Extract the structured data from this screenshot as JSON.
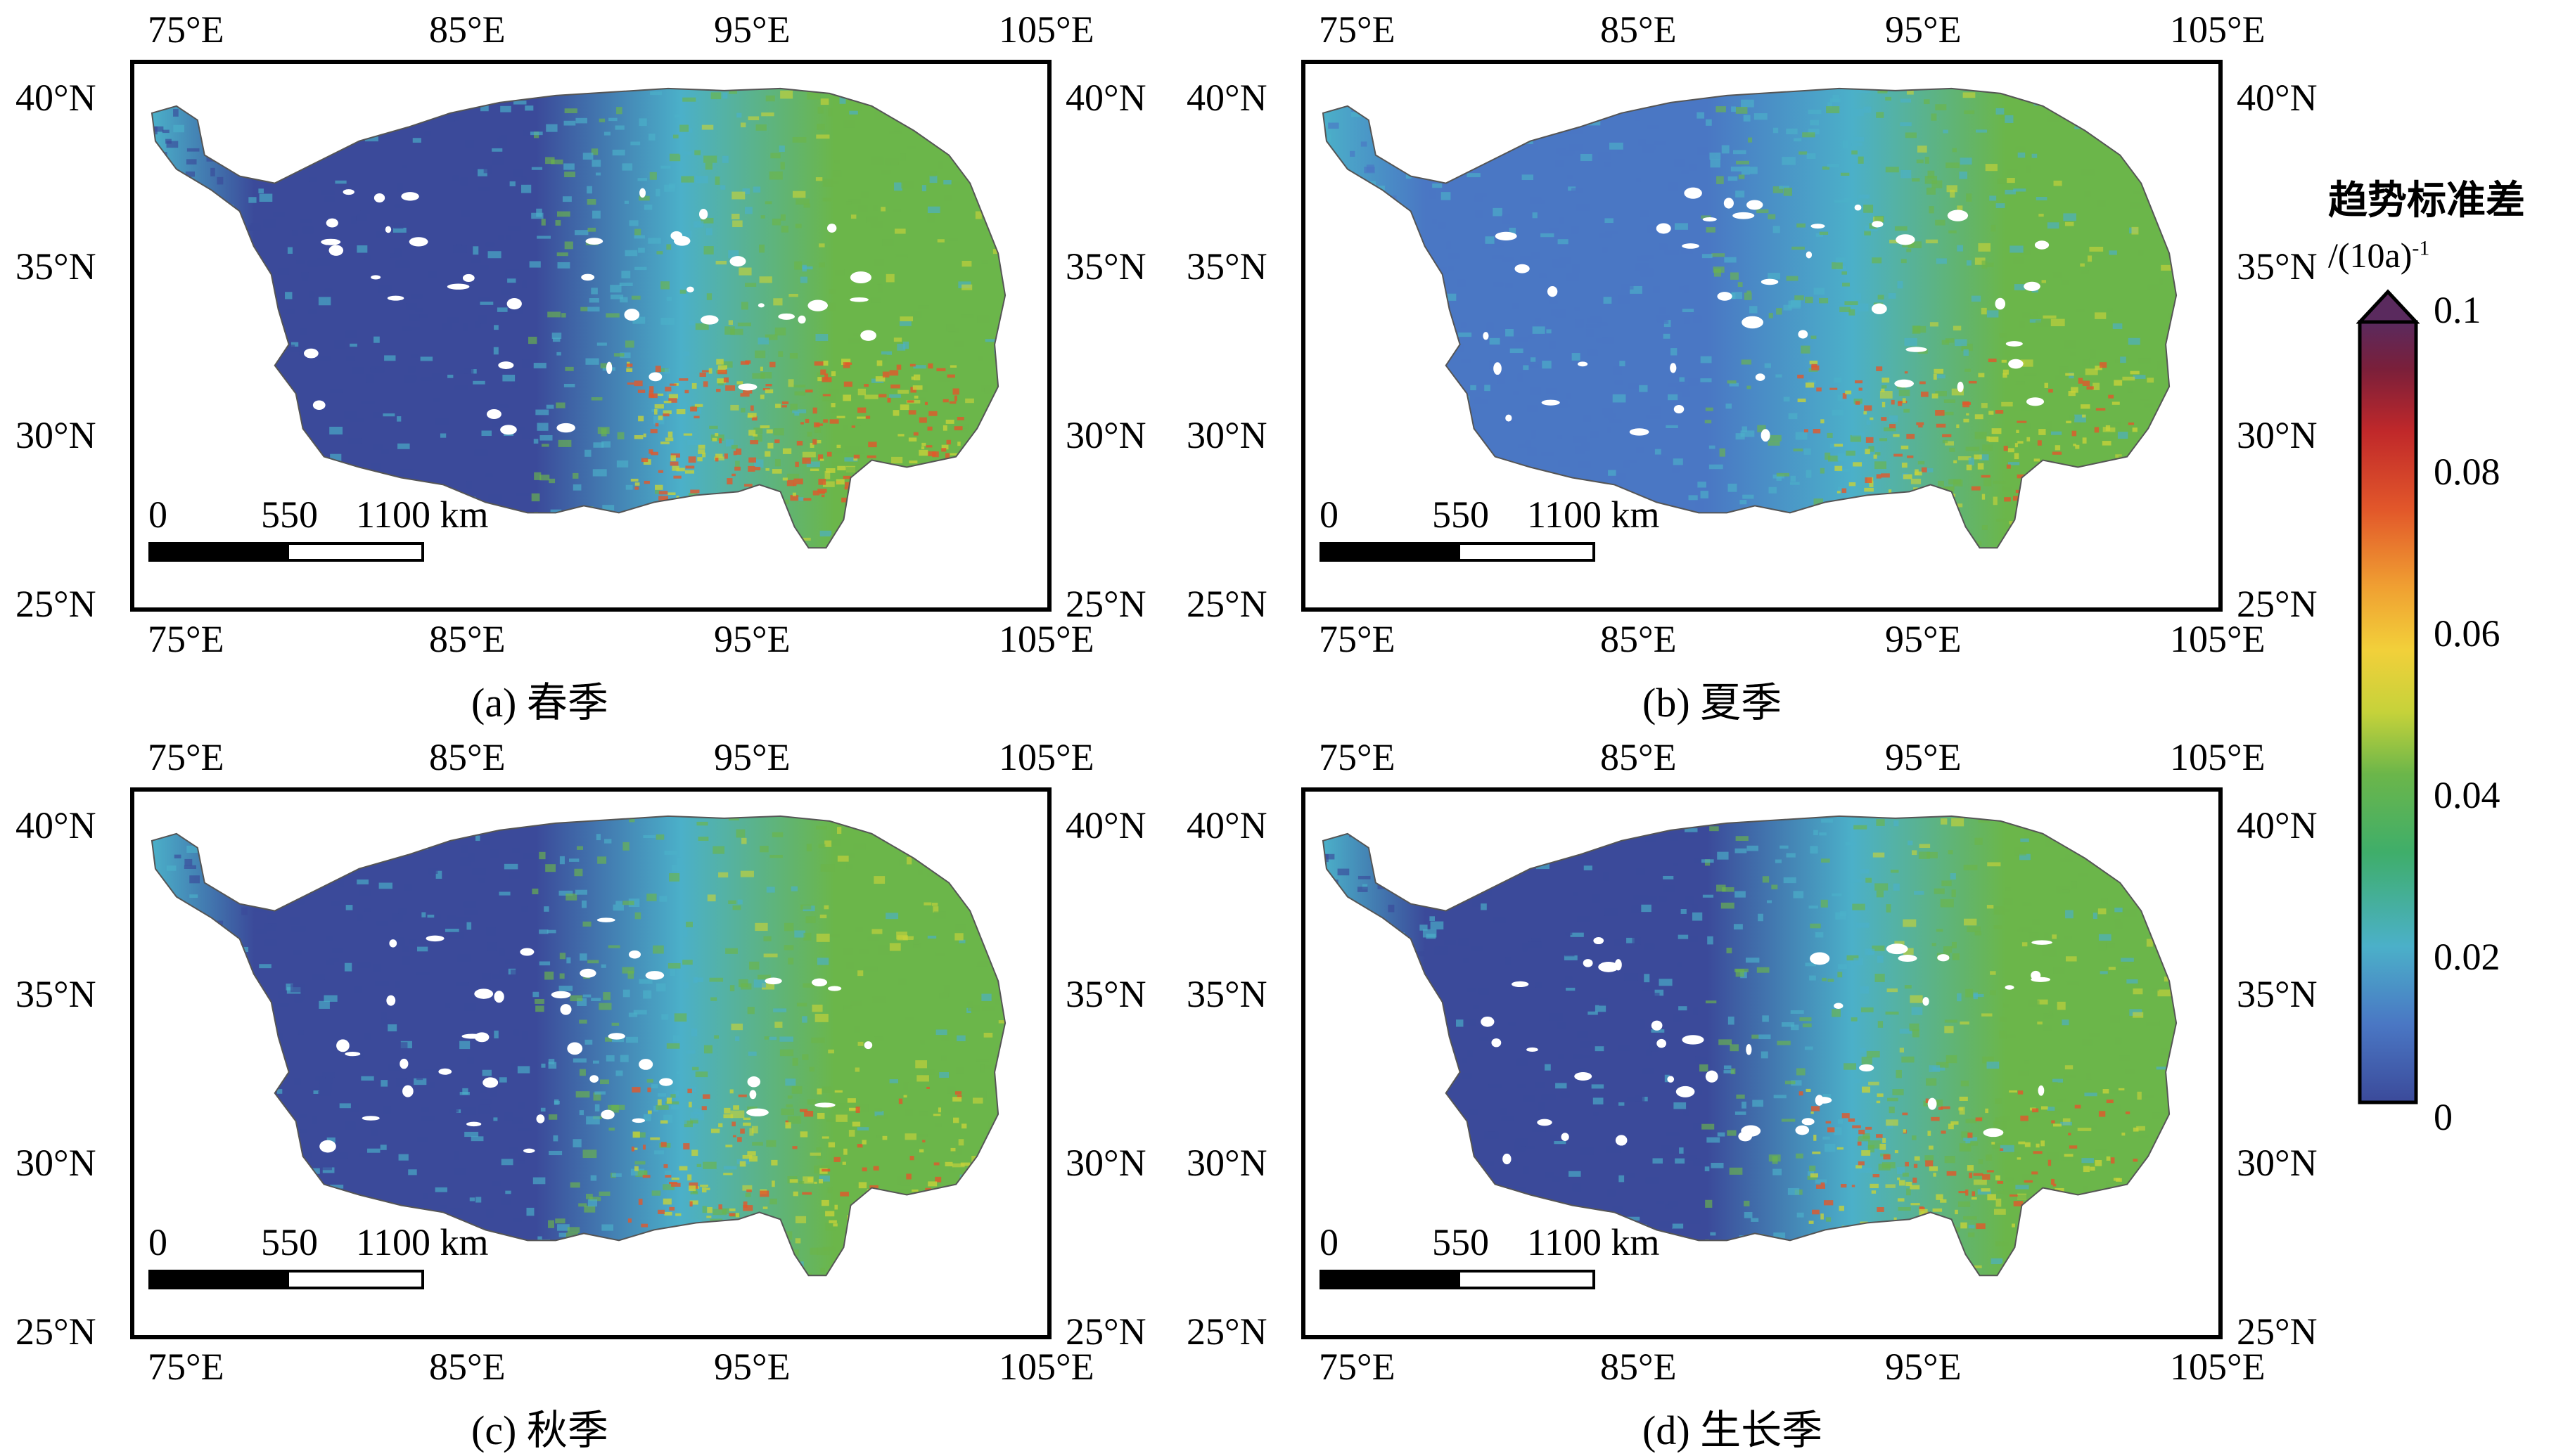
{
  "panels": [
    {
      "id": "a",
      "caption": "(a) 春季",
      "top_lon_labels": [
        "75°E",
        "85°E",
        "95°E",
        "105°E"
      ],
      "bottom_lon_labels": [
        "75°E",
        "85°E",
        "95°E",
        "105°E"
      ],
      "left_lat_labels": [
        "40°N",
        "35°N",
        "30°N",
        "25°N"
      ],
      "right_lat_labels": [
        "40°N",
        "35°N",
        "30°N",
        "25°N"
      ],
      "scale_labels": [
        "0",
        "550",
        "1100 km"
      ],
      "palette": "spring"
    },
    {
      "id": "b",
      "caption": "(b) 夏季",
      "top_lon_labels": [
        "75°E",
        "85°E",
        "95°E",
        "105°E"
      ],
      "bottom_lon_labels": [
        "75°E",
        "85°E",
        "95°E",
        "105°E"
      ],
      "left_lat_labels": [
        "40°N",
        "35°N",
        "30°N",
        "25°N"
      ],
      "right_lat_labels": [
        "40°N",
        "35°N",
        "30°N",
        "25°N"
      ],
      "scale_labels": [
        "0",
        "550",
        "1100 km"
      ],
      "palette": "summer"
    },
    {
      "id": "c",
      "caption": "(c) 秋季",
      "top_lon_labels": [
        "75°E",
        "85°E",
        "95°E",
        "105°E"
      ],
      "bottom_lon_labels": [
        "75°E",
        "85°E",
        "95°E",
        "105°E"
      ],
      "left_lat_labels": [
        "40°N",
        "35°N",
        "30°N",
        "25°N"
      ],
      "right_lat_labels": [
        "40°N",
        "35°N",
        "30°N",
        "25°N"
      ],
      "scale_labels": [
        "0",
        "550",
        "1100 km"
      ],
      "palette": "autumn"
    },
    {
      "id": "d",
      "caption": "(d) 生长季",
      "top_lon_labels": [
        "75°E",
        "85°E",
        "95°E",
        "105°E"
      ],
      "bottom_lon_labels": [
        "75°E",
        "85°E",
        "95°E",
        "105°E"
      ],
      "left_lat_labels": [
        "40°N",
        "35°N",
        "30°N",
        "25°N"
      ],
      "right_lat_labels": [
        "40°N",
        "35°N",
        "30°N",
        "25°N"
      ],
      "scale_labels": [
        "0",
        "550",
        "1100 km"
      ],
      "palette": "growing"
    }
  ],
  "legend": {
    "title": "趋势标准差",
    "unit_base": "/(10a)",
    "unit_exp": "-1",
    "tick_labels": [
      "0.1",
      "0.08",
      "0.06",
      "0.04",
      "0.02",
      "0"
    ],
    "colors": [
      "#3b4a9a",
      "#4a77c4",
      "#4bb0c9",
      "#3fae6a",
      "#6bb64a",
      "#c6d23a",
      "#f2d03a",
      "#f0a032",
      "#e2572a",
      "#c0282a",
      "#7a1f3a",
      "#5a2a5e"
    ]
  },
  "chart_data": {
    "type": "heatmap",
    "description_units": "趋势标准差 /(10a)-1",
    "value_range": [
      0,
      0.1
    ],
    "colorbar_ticks": [
      0,
      0.02,
      0.04,
      0.06,
      0.08,
      0.1
    ],
    "lon_ticks": [
      "75°E",
      "85°E",
      "95°E",
      "105°E"
    ],
    "lat_ticks": [
      "40°N",
      "35°N",
      "30°N",
      "25°N"
    ],
    "panels": [
      "(a) 春季",
      "(b) 夏季",
      "(c) 秋季",
      "(d) 生长季"
    ]
  }
}
